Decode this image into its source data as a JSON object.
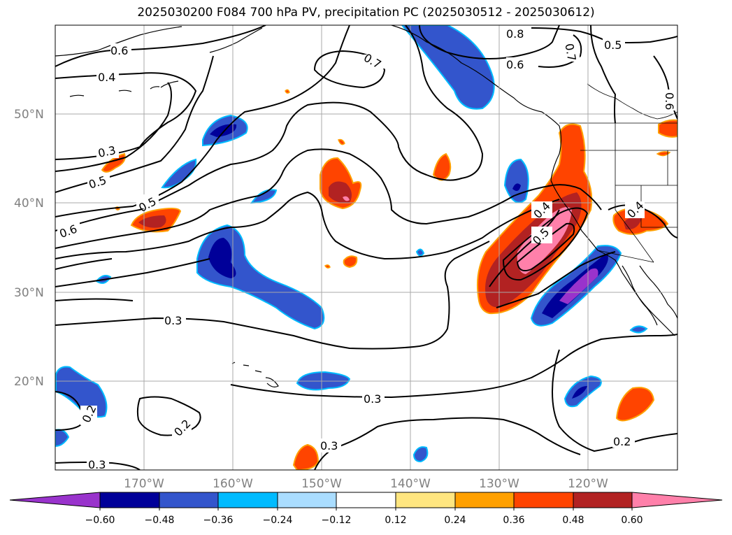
{
  "title": "2025030200 F084 700 hPa PV, precipitation PC (2025030512 - 2025030612)",
  "lat_labels": [
    "50°N",
    "40°N",
    "30°N",
    "20°N"
  ],
  "lon_labels": [
    "170°W",
    "160°W",
    "150°W",
    "140°W",
    "130°W",
    "120°W"
  ],
  "colorbar": {
    "tick_labels": [
      "−0.60",
      "−0.48",
      "−0.36",
      "−0.24",
      "−0.12",
      "0.12",
      "0.24",
      "0.36",
      "0.48",
      "0.60"
    ],
    "colors": [
      "#9933cc",
      "#000099",
      "#3355cc",
      "#00bbff",
      "#aaddff",
      "#ffffff",
      "#ffe680",
      "#ffa000",
      "#ff4400",
      "#b22222",
      "#ff80aa"
    ]
  },
  "contour_labels": [
    "0.6",
    "0.4",
    "0.3",
    "0.5",
    "0.5",
    "0.6",
    "0.7",
    "0.8",
    "0.7",
    "0.5",
    "0.6",
    "0.6",
    "0.3",
    "0.3",
    "0.3",
    "0.2",
    "0.2",
    "0.2",
    "0.3",
    "0.4",
    "0.5",
    "0.4"
  ]
}
